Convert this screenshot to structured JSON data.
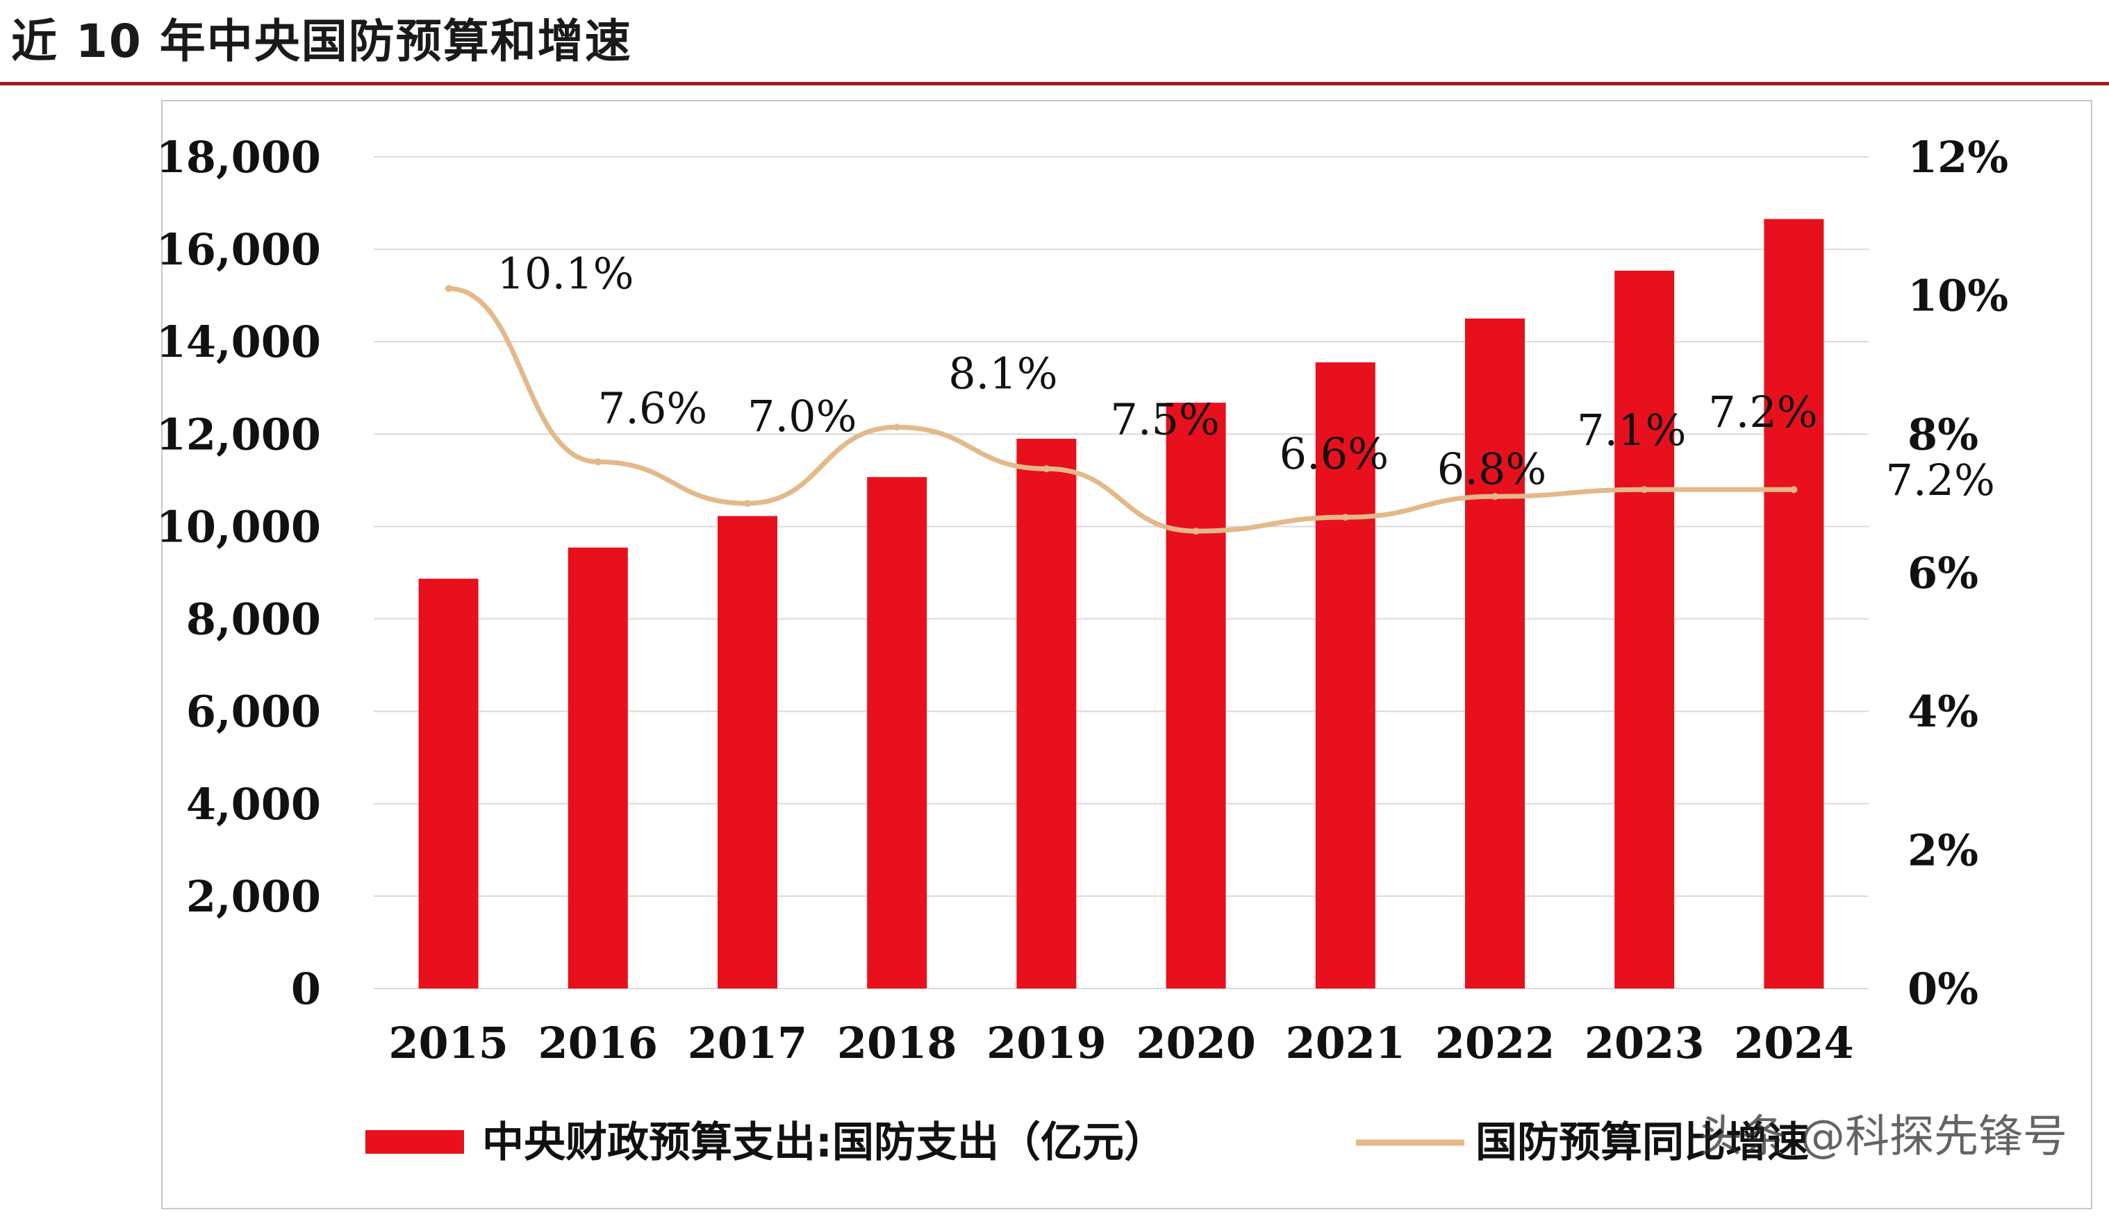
{
  "title": "近 10 年中央国防预算和增速",
  "colors": {
    "bar": "#e8101c",
    "line": "#e3b98a",
    "rule": "#9e1a1a",
    "grid": "#d9d9d9"
  },
  "watermark": "头条 @科探先锋号",
  "chart_data": {
    "type": "bar",
    "categories": [
      "2015",
      "2016",
      "2017",
      "2018",
      "2019",
      "2020",
      "2021",
      "2022",
      "2023",
      "2024"
    ],
    "series": [
      {
        "name": "中央财政预算支出:国防支出（亿元）",
        "type": "bar",
        "axis": "left",
        "values": [
          8870,
          9544,
          10226,
          11070,
          11899,
          12680,
          13553,
          14502,
          15537,
          16655
        ]
      },
      {
        "name": "国防预算同比增速",
        "type": "line",
        "axis": "right",
        "values": [
          10.1,
          7.6,
          7.0,
          8.1,
          7.5,
          6.6,
          6.8,
          7.1,
          7.2,
          7.2
        ],
        "labels": [
          "10.1%",
          "7.6%",
          "7.0%",
          "8.1%",
          "7.5%",
          "6.6%",
          "6.8%",
          "7.1%",
          "7.2%",
          "7.2%"
        ]
      }
    ],
    "left_axis": {
      "range": [
        0,
        18000
      ],
      "ticks": [
        "0",
        "2,000",
        "4,000",
        "6,000",
        "8,000",
        "10,000",
        "12,000",
        "14,000",
        "16,000",
        "18,000"
      ]
    },
    "right_axis": {
      "range": [
        0,
        12
      ],
      "ticks": [
        "0%",
        "2%",
        "4%",
        "6%",
        "8%",
        "10%",
        "12%"
      ]
    },
    "grid": true,
    "legend_position": "bottom"
  }
}
